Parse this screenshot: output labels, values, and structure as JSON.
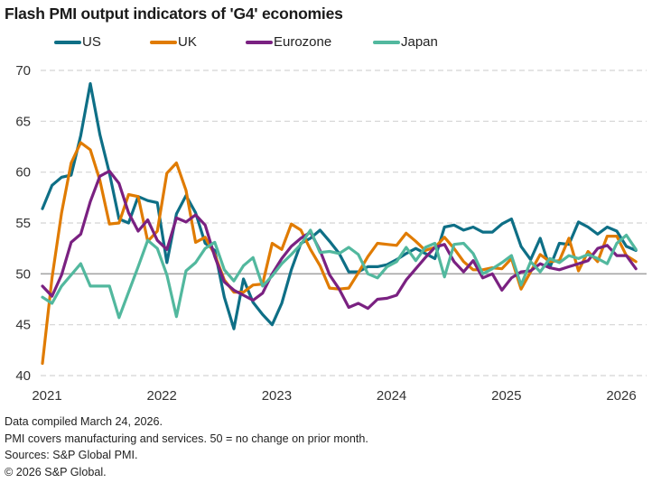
{
  "chart_data": {
    "type": "line",
    "title": "Flash PMI output indicators of 'G4' economies",
    "xlabel": "",
    "ylabel": "",
    "ylim": [
      40,
      70
    ],
    "yticks": [
      40,
      45,
      50,
      55,
      60,
      65,
      70
    ],
    "xticks": [
      "2021",
      "2022",
      "2023",
      "2024",
      "2025",
      "2026"
    ],
    "x_start": "2021-01",
    "x_end": "2026-03",
    "frequency": "monthly",
    "grid": true,
    "reference_line": 50,
    "legend_position": "top",
    "series": [
      {
        "name": "US",
        "color": "#0e6f86",
        "values": [
          56.4,
          58.7,
          59.5,
          59.7,
          63.6,
          68.7,
          63.7,
          59.9,
          55.4,
          55.0,
          57.6,
          57.2,
          57.0,
          51.1,
          55.9,
          57.7,
          56.0,
          53.0,
          52.3,
          47.7,
          44.6,
          49.5,
          47.2,
          46.0,
          45.0,
          47.1,
          50.4,
          53.0,
          53.5,
          54.3,
          53.2,
          52.0,
          50.2,
          50.2,
          50.7,
          50.7,
          50.9,
          51.4,
          52.0,
          52.5,
          52.0,
          51.5,
          54.6,
          54.8,
          54.3,
          54.6,
          54.1,
          54.1,
          54.9,
          55.4,
          52.7,
          51.4,
          53.5,
          50.6,
          53.0,
          52.9,
          55.1,
          54.6,
          53.9,
          54.6,
          54.2,
          52.7,
          52.3
        ]
      },
      {
        "name": "UK",
        "color": "#e07b00",
        "values": [
          41.2,
          49.6,
          56.0,
          60.9,
          62.9,
          62.2,
          59.2,
          54.9,
          55.0,
          57.8,
          57.6,
          53.2,
          54.2,
          59.9,
          60.9,
          58.2,
          53.1,
          53.6,
          51.9,
          49.4,
          48.2,
          48.2,
          48.9,
          49.0,
          53.0,
          52.4,
          54.9,
          54.3,
          52.4,
          50.8,
          48.6,
          48.5,
          48.6,
          50.1,
          51.7,
          53.0,
          52.9,
          52.8,
          54.0,
          53.2,
          52.3,
          52.6,
          53.6,
          52.5,
          51.2,
          50.4,
          50.4,
          50.6,
          50.5,
          51.5,
          48.5,
          50.2,
          51.9,
          51.2,
          51.3,
          53.5,
          50.3,
          52.2,
          51.2,
          53.7,
          53.7,
          51.8,
          51.2
        ]
      },
      {
        "name": "Eurozone",
        "color": "#7a2181",
        "values": [
          48.8,
          47.8,
          49.9,
          53.1,
          53.9,
          57.1,
          59.6,
          60.1,
          58.9,
          56.0,
          54.2,
          55.3,
          53.3,
          52.4,
          55.5,
          55.1,
          55.8,
          54.8,
          51.7,
          49.2,
          48.4,
          47.9,
          47.4,
          48.1,
          50.0,
          51.5,
          52.7,
          53.5,
          54.1,
          52.3,
          49.9,
          48.5,
          46.7,
          47.1,
          46.6,
          47.5,
          47.6,
          47.9,
          49.4,
          50.5,
          51.6,
          52.6,
          52.9,
          51.2,
          50.2,
          51.3,
          49.6,
          50.0,
          48.4,
          49.6,
          50.2,
          50.3,
          51.0,
          50.6,
          50.4,
          50.7,
          51.0,
          51.3,
          52.5,
          52.8,
          51.8,
          51.8,
          50.5
        ]
      },
      {
        "name": "Japan",
        "color": "#52b89e",
        "values": [
          47.7,
          47.1,
          48.8,
          49.9,
          51.0,
          48.8,
          48.8,
          48.8,
          45.7,
          48.2,
          50.7,
          53.3,
          52.5,
          49.9,
          45.8,
          50.3,
          51.1,
          52.5,
          53.1,
          50.4,
          49.3,
          50.8,
          51.6,
          48.8,
          49.8,
          51.0,
          51.9,
          52.9,
          54.3,
          52.1,
          52.2,
          52.0,
          52.6,
          51.9,
          50.0,
          49.6,
          50.7,
          51.2,
          52.6,
          51.3,
          52.6,
          53.0,
          49.7,
          52.9,
          53.0,
          52.0,
          50.0,
          50.5,
          51.1,
          51.8,
          48.9,
          51.2,
          50.2,
          51.5,
          51.1,
          51.8,
          51.5,
          51.9,
          51.5,
          51.0,
          53.0,
          53.8,
          52.4
        ]
      }
    ]
  },
  "footer": {
    "lines": [
      "Data compiled March 24, 2026.",
      "PMI covers manufacturing and services. 50 = no change on prior month.",
      "Sources: S&P Global PMI.",
      "© 2026 S&P Global."
    ]
  }
}
